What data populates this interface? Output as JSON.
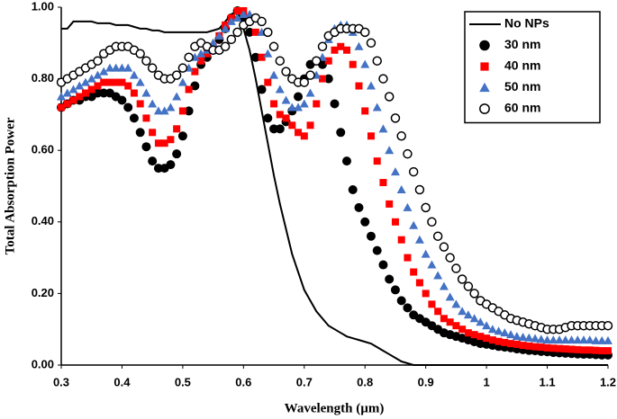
{
  "chart_data": {
    "type": "scatter",
    "xlabel": "Wavelength (µm)",
    "ylabel": "Total Absorption Power",
    "xlim": [
      0.3,
      1.2
    ],
    "ylim": [
      0,
      1
    ],
    "xticks": [
      0.3,
      0.4,
      0.5,
      0.6,
      0.7,
      0.8,
      0.9,
      1,
      1.1,
      1.2
    ],
    "yticks": [
      {
        "value": 0,
        "label": "0.00"
      },
      {
        "value": 0.2,
        "label": "0.20"
      },
      {
        "value": 0.4,
        "label": "0.40"
      },
      {
        "value": 0.6,
        "label": "0.60"
      },
      {
        "value": 0.8,
        "label": "0.80"
      },
      {
        "value": 1,
        "label": "1.00"
      }
    ],
    "grid": false,
    "legend": "upper right",
    "x": [
      0.3,
      0.31,
      0.32,
      0.33,
      0.34,
      0.35,
      0.36,
      0.37,
      0.38,
      0.39,
      0.4,
      0.41,
      0.42,
      0.43,
      0.44,
      0.45,
      0.46,
      0.47,
      0.48,
      0.49,
      0.5,
      0.51,
      0.52,
      0.53,
      0.54,
      0.55,
      0.56,
      0.57,
      0.58,
      0.59,
      0.6,
      0.61,
      0.62,
      0.63,
      0.64,
      0.65,
      0.66,
      0.67,
      0.68,
      0.69,
      0.7,
      0.71,
      0.72,
      0.73,
      0.74,
      0.75,
      0.76,
      0.77,
      0.78,
      0.79,
      0.8,
      0.81,
      0.82,
      0.83,
      0.84,
      0.85,
      0.86,
      0.87,
      0.88,
      0.89,
      0.9,
      0.91,
      0.92,
      0.93,
      0.94,
      0.95,
      0.96,
      0.97,
      0.98,
      0.99,
      1.0,
      1.01,
      1.02,
      1.03,
      1.04,
      1.05,
      1.06,
      1.07,
      1.08,
      1.09,
      1.1,
      1.11,
      1.12,
      1.13,
      1.14,
      1.15,
      1.16,
      1.17,
      1.18,
      1.19,
      1.2
    ],
    "series": [
      {
        "name": "No NPs",
        "color": "#000000",
        "marker": "line",
        "values": [
          0.94,
          0.94,
          0.96,
          0.96,
          0.96,
          0.96,
          0.955,
          0.955,
          0.955,
          0.95,
          0.95,
          0.95,
          0.945,
          0.94,
          0.94,
          0.935,
          0.935,
          0.93,
          0.93,
          0.93,
          0.93,
          0.93,
          0.93,
          0.93,
          0.93,
          0.935,
          0.94,
          0.96,
          0.98,
          0.99,
          0.94,
          0.88,
          0.8,
          0.71,
          0.62,
          0.53,
          0.45,
          0.38,
          0.31,
          0.26,
          0.21,
          0.18,
          0.15,
          0.13,
          0.11,
          0.1,
          0.09,
          0.08,
          0.075,
          0.07,
          0.065,
          0.06,
          0.05,
          0.04,
          0.03,
          0.02,
          0.01,
          0.005,
          0,
          0,
          0,
          0,
          0,
          0,
          0,
          0,
          0,
          0,
          0,
          0,
          0,
          0,
          0,
          0,
          0,
          0,
          0,
          0,
          0,
          0,
          0,
          0,
          0,
          0,
          0,
          0,
          0,
          0,
          0,
          0,
          0
        ]
      },
      {
        "name": "30 nm",
        "color": "#000000",
        "marker": "circle",
        "values": [
          0.72,
          0.73,
          0.74,
          0.74,
          0.75,
          0.75,
          0.76,
          0.76,
          0.76,
          0.75,
          0.74,
          0.72,
          0.69,
          0.65,
          0.61,
          0.57,
          0.55,
          0.55,
          0.56,
          0.59,
          0.64,
          0.71,
          0.78,
          0.84,
          0.86,
          0.88,
          0.91,
          0.94,
          0.97,
          0.99,
          0.97,
          0.93,
          0.86,
          0.77,
          0.69,
          0.66,
          0.66,
          0.68,
          0.71,
          0.75,
          0.8,
          0.84,
          0.85,
          0.84,
          0.8,
          0.73,
          0.65,
          0.57,
          0.49,
          0.44,
          0.4,
          0.36,
          0.32,
          0.28,
          0.24,
          0.21,
          0.18,
          0.16,
          0.14,
          0.13,
          0.12,
          0.11,
          0.1,
          0.09,
          0.085,
          0.08,
          0.075,
          0.07,
          0.065,
          0.06,
          0.058,
          0.055,
          0.052,
          0.05,
          0.048,
          0.045,
          0.043,
          0.041,
          0.04,
          0.038,
          0.037,
          0.035,
          0.034,
          0.033,
          0.032,
          0.031,
          0.03,
          0.03,
          0.029,
          0.028,
          0.028
        ]
      },
      {
        "name": "40 nm",
        "color": "#ff0000",
        "marker": "square",
        "values": [
          0.72,
          0.73,
          0.74,
          0.75,
          0.76,
          0.77,
          0.78,
          0.79,
          0.79,
          0.79,
          0.79,
          0.78,
          0.76,
          0.73,
          0.69,
          0.65,
          0.62,
          0.62,
          0.63,
          0.66,
          0.71,
          0.77,
          0.82,
          0.85,
          0.87,
          0.89,
          0.92,
          0.95,
          0.97,
          0.99,
          0.99,
          0.97,
          0.93,
          0.86,
          0.79,
          0.73,
          0.7,
          0.69,
          0.67,
          0.65,
          0.64,
          0.67,
          0.73,
          0.8,
          0.85,
          0.88,
          0.89,
          0.88,
          0.84,
          0.78,
          0.71,
          0.64,
          0.57,
          0.51,
          0.45,
          0.4,
          0.35,
          0.3,
          0.26,
          0.23,
          0.2,
          0.17,
          0.15,
          0.13,
          0.12,
          0.11,
          0.1,
          0.09,
          0.085,
          0.08,
          0.075,
          0.07,
          0.066,
          0.063,
          0.06,
          0.058,
          0.055,
          0.053,
          0.051,
          0.05,
          0.048,
          0.047,
          0.046,
          0.045,
          0.044,
          0.043,
          0.042,
          0.042,
          0.041,
          0.04,
          0.04
        ]
      },
      {
        "name": "50 nm",
        "color": "#4472c4",
        "marker": "triangle",
        "values": [
          0.75,
          0.76,
          0.77,
          0.78,
          0.79,
          0.8,
          0.81,
          0.82,
          0.83,
          0.83,
          0.83,
          0.83,
          0.81,
          0.79,
          0.76,
          0.73,
          0.71,
          0.71,
          0.72,
          0.75,
          0.79,
          0.83,
          0.86,
          0.87,
          0.88,
          0.9,
          0.92,
          0.94,
          0.96,
          0.97,
          0.98,
          0.98,
          0.97,
          0.93,
          0.87,
          0.81,
          0.77,
          0.74,
          0.72,
          0.72,
          0.73,
          0.76,
          0.81,
          0.86,
          0.91,
          0.94,
          0.95,
          0.95,
          0.93,
          0.89,
          0.84,
          0.78,
          0.72,
          0.66,
          0.6,
          0.54,
          0.49,
          0.44,
          0.39,
          0.35,
          0.31,
          0.28,
          0.25,
          0.22,
          0.19,
          0.17,
          0.15,
          0.14,
          0.13,
          0.12,
          0.11,
          0.1,
          0.095,
          0.09,
          0.085,
          0.08,
          0.078,
          0.076,
          0.074,
          0.072,
          0.07,
          0.07,
          0.07,
          0.07,
          0.07,
          0.07,
          0.07,
          0.07,
          0.068,
          0.068,
          0.068
        ]
      },
      {
        "name": "60 nm",
        "color": "#000000",
        "marker": "open-circle",
        "values": [
          0.79,
          0.8,
          0.81,
          0.82,
          0.83,
          0.84,
          0.85,
          0.87,
          0.88,
          0.89,
          0.89,
          0.89,
          0.88,
          0.87,
          0.85,
          0.83,
          0.81,
          0.8,
          0.8,
          0.81,
          0.83,
          0.86,
          0.89,
          0.9,
          0.89,
          0.88,
          0.88,
          0.89,
          0.91,
          0.93,
          0.95,
          0.96,
          0.97,
          0.96,
          0.93,
          0.89,
          0.85,
          0.82,
          0.8,
          0.79,
          0.79,
          0.81,
          0.85,
          0.89,
          0.92,
          0.93,
          0.94,
          0.94,
          0.94,
          0.94,
          0.93,
          0.9,
          0.85,
          0.8,
          0.75,
          0.69,
          0.64,
          0.59,
          0.54,
          0.49,
          0.44,
          0.4,
          0.36,
          0.33,
          0.3,
          0.27,
          0.24,
          0.22,
          0.2,
          0.18,
          0.17,
          0.16,
          0.15,
          0.14,
          0.13,
          0.125,
          0.12,
          0.115,
          0.11,
          0.105,
          0.1,
          0.1,
          0.1,
          0.105,
          0.11,
          0.11,
          0.11,
          0.11,
          0.11,
          0.11,
          0.11
        ]
      }
    ]
  }
}
